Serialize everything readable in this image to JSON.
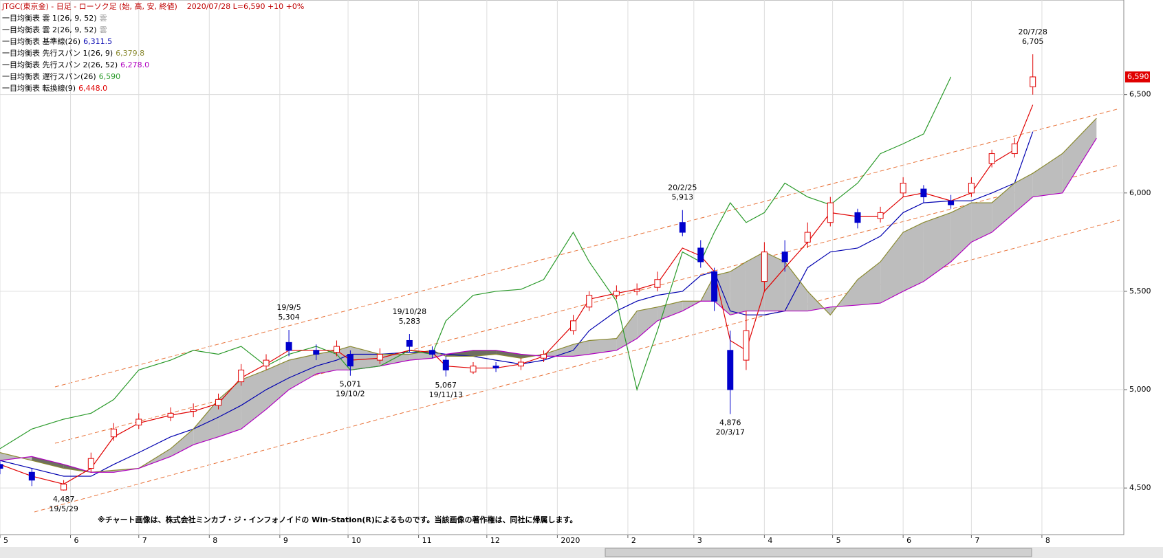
{
  "chart_data": {
    "type": "candlestick",
    "title": "JTGC(東京金) - 日足 - ローソク足 (始, 高, 安, 終値)",
    "status": "2020/07/28  L=6,590  +10  +0%",
    "clouds": [
      {
        "name": "一目均衡表 雲 1(26, 9, 52)",
        "marker": "雲"
      },
      {
        "name": "一目均衡表 雲 2(26, 9, 52)",
        "marker": "雲"
      }
    ],
    "x": [
      "19/5/1",
      "19/5/15",
      "19/5/29",
      "19/6/10",
      "19/6/20",
      "19/7/1",
      "19/7/15",
      "19/7/25",
      "19/8/5",
      "19/8/15",
      "19/8/26",
      "19/9/5",
      "19/9/17",
      "19/9/26",
      "19/10/2",
      "19/10/15",
      "19/10/28",
      "19/11/7",
      "19/11/13",
      "19/11/25",
      "19/12/5",
      "19/12/16",
      "19/12/26",
      "20/1/8",
      "20/1/15",
      "20/1/27",
      "20/2/5",
      "20/2/14",
      "20/2/25",
      "20/3/4",
      "20/3/10",
      "20/3/17",
      "20/3/24",
      "20/4/1",
      "20/4/10",
      "20/4/20",
      "20/4/30",
      "20/5/12",
      "20/5/22",
      "20/6/1",
      "20/6/10",
      "20/6/22",
      "20/7/1",
      "20/7/10",
      "20/7/20",
      "20/7/28",
      "20/8/10",
      "20/8/25"
    ],
    "open": [
      4620,
      4580,
      4490,
      4600,
      4760,
      4820,
      4860,
      4890,
      4920,
      5040,
      5120,
      5240,
      5200,
      5190,
      5180,
      5150,
      5250,
      5200,
      5150,
      5090,
      5120,
      5120,
      5160,
      5300,
      5420,
      5480,
      5500,
      5520,
      5850,
      5720,
      5600,
      5200,
      5150,
      5550,
      5700,
      5750,
      5850,
      5900,
      5870,
      6000,
      6020,
      5960,
      6000,
      6150,
      6200,
      6540,
      null,
      null
    ],
    "high": [
      4640,
      4600,
      4540,
      4680,
      4830,
      4880,
      4910,
      4930,
      4980,
      5130,
      5180,
      5304,
      5230,
      5250,
      5200,
      5210,
      5283,
      5220,
      5170,
      5140,
      5140,
      5160,
      5200,
      5380,
      5500,
      5530,
      5540,
      5600,
      5913,
      5760,
      5620,
      5300,
      5400,
      5750,
      5760,
      5850,
      5980,
      5920,
      5930,
      6080,
      6040,
      5990,
      6080,
      6220,
      6280,
      6705,
      null,
      null
    ],
    "low": [
      4570,
      4510,
      4487,
      4580,
      4740,
      4800,
      4840,
      4860,
      4900,
      5020,
      5100,
      5170,
      5150,
      5170,
      5071,
      5130,
      5190,
      5160,
      5067,
      5080,
      5090,
      5100,
      5140,
      5280,
      5400,
      5460,
      5480,
      5500,
      5780,
      5620,
      5400,
      4876,
      5100,
      5500,
      5600,
      5720,
      5830,
      5820,
      5850,
      5980,
      5950,
      5920,
      5980,
      6130,
      6180,
      6500,
      null,
      null
    ],
    "close": [
      4600,
      4540,
      4520,
      4650,
      4800,
      4850,
      4880,
      4900,
      4950,
      5100,
      5150,
      5200,
      5180,
      5220,
      5120,
      5180,
      5220,
      5180,
      5100,
      5120,
      5110,
      5140,
      5180,
      5350,
      5480,
      5500,
      5510,
      5560,
      5800,
      5650,
      5450,
      5000,
      5300,
      5700,
      5650,
      5800,
      5950,
      5850,
      5900,
      6050,
      5980,
      5940,
      6050,
      6200,
      6250,
      6590,
      null,
      null
    ],
    "last_label": "6,590",
    "up_color": "#e00000",
    "down_color": "#0000cc",
    "series": [
      {
        "name": "一目均衡表 基準線(26)",
        "last_label": "6,311.5",
        "color": "#0000b0",
        "values": [
          4640,
          4600,
          4560,
          4560,
          4620,
          4680,
          4760,
          4800,
          4860,
          4920,
          5000,
          5060,
          5120,
          5150,
          5180,
          5180,
          5190,
          5190,
          5180,
          5170,
          5150,
          5130,
          5150,
          5200,
          5300,
          5400,
          5450,
          5480,
          5500,
          5580,
          5600,
          5400,
          5380,
          5380,
          5400,
          5620,
          5700,
          5720,
          5780,
          5900,
          5950,
          5960,
          5960,
          6000,
          6050,
          6311.5,
          null,
          null
        ]
      },
      {
        "name": "一目均衡表 先行スパン 1(26, 9)",
        "last_label": "6,379.8",
        "color": "#8a8a30",
        "values": [
          4680,
          4640,
          4600,
          4580,
          4590,
          4600,
          4700,
          4800,
          4950,
          5050,
          5100,
          5150,
          5180,
          5200,
          5220,
          5180,
          5180,
          5200,
          5170,
          5170,
          5180,
          5160,
          5180,
          5230,
          5250,
          5260,
          5400,
          5420,
          5450,
          5450,
          5580,
          5600,
          5650,
          5700,
          5650,
          5500,
          5380,
          5560,
          5650,
          5800,
          5850,
          5900,
          5950,
          5950,
          6050,
          6100,
          6200,
          6379.8
        ]
      },
      {
        "name": "一目均衡表 先行スパン 2(26, 52)",
        "last_label": "6,278.0",
        "color": "#b000c0",
        "values": [
          4640,
          4660,
          4620,
          4580,
          4580,
          4600,
          4660,
          4720,
          4760,
          4800,
          4900,
          5000,
          5080,
          5100,
          5100,
          5120,
          5150,
          5160,
          5180,
          5200,
          5200,
          5180,
          5170,
          5170,
          5180,
          5200,
          5260,
          5350,
          5400,
          5450,
          5450,
          5380,
          5400,
          5400,
          5400,
          5400,
          5420,
          5430,
          5440,
          5500,
          5550,
          5650,
          5750,
          5800,
          5900,
          5980,
          6000,
          6278.0
        ]
      },
      {
        "name": "一目均衡表 遅行スパン(26)",
        "last_label": "6,590",
        "color": "#2a9a2a",
        "values": [
          4700,
          4800,
          4850,
          4880,
          4950,
          5100,
          5150,
          5200,
          5180,
          5220,
          5120,
          5180,
          5220,
          5180,
          5100,
          5120,
          5200,
          5180,
          5350,
          5480,
          5500,
          5510,
          5560,
          5800,
          5650,
          5450,
          5000,
          5300,
          5700,
          5650,
          5800,
          5950,
          5850,
          5900,
          6050,
          5980,
          5940,
          6050,
          6200,
          6250,
          6300,
          6590,
          null,
          null,
          null,
          null,
          null,
          null
        ]
      },
      {
        "name": "一目均衡表 転換線(9)",
        "last_label": "6,448.0",
        "color": "#e00000",
        "values": [
          4620,
          4560,
          4520,
          4600,
          4760,
          4830,
          4870,
          4890,
          4930,
          5060,
          5130,
          5200,
          5200,
          5200,
          5150,
          5160,
          5200,
          5190,
          5120,
          5110,
          5110,
          5130,
          5170,
          5330,
          5460,
          5490,
          5510,
          5540,
          5720,
          5680,
          5600,
          5250,
          5200,
          5500,
          5620,
          5750,
          5900,
          5880,
          5880,
          5980,
          6000,
          5960,
          6000,
          6150,
          6220,
          6448.0,
          null,
          null
        ]
      }
    ],
    "annotations": [
      {
        "x": "19/5/29",
        "value": 4487,
        "label": "4,487",
        "side": "low"
      },
      {
        "x": "19/9/5",
        "value": 5304,
        "label": "5,304",
        "side": "high"
      },
      {
        "x": "19/10/2",
        "value": 5071,
        "label": "5,071",
        "side": "low"
      },
      {
        "x": "19/10/28",
        "value": 5283,
        "label": "5,283",
        "side": "high"
      },
      {
        "x": "19/11/13",
        "value": 5067,
        "label": "5,067",
        "side": "low"
      },
      {
        "x": "20/2/25",
        "value": 5913,
        "label": "5,913",
        "side": "high"
      },
      {
        "x": "20/3/17",
        "value": 4876,
        "label": "4,876",
        "side": "low"
      },
      {
        "x": "20/7/28",
        "value": 6705,
        "label": "6,705",
        "side": "high"
      }
    ],
    "xlim": [
      "19/5/1",
      "20/9/6"
    ],
    "xticks": [
      {
        "value": "19/5/1",
        "label": "5"
      },
      {
        "value": "19/6/1",
        "label": "6"
      },
      {
        "value": "19/7/1",
        "label": "7"
      },
      {
        "value": "19/8/1",
        "label": "8"
      },
      {
        "value": "19/9/1",
        "label": "9"
      },
      {
        "value": "19/10/1",
        "label": "10"
      },
      {
        "value": "19/11/1",
        "label": "11"
      },
      {
        "value": "19/12/1",
        "label": "12"
      },
      {
        "value": "20/1/1",
        "label": "2020"
      },
      {
        "value": "20/2/1",
        "label": "2"
      },
      {
        "value": "20/3/1",
        "label": "3"
      },
      {
        "value": "20/4/1",
        "label": "4"
      },
      {
        "value": "20/5/1",
        "label": "5"
      },
      {
        "value": "20/6/1",
        "label": "6"
      },
      {
        "value": "20/7/1",
        "label": "7"
      },
      {
        "value": "20/8/1",
        "label": "8"
      }
    ],
    "ylim": [
      4263,
      6981
    ],
    "yticks": [
      {
        "value": 4500,
        "label": "4,500"
      },
      {
        "value": 5000,
        "label": "5,000"
      },
      {
        "value": 5500,
        "label": "5,500"
      },
      {
        "value": 6000,
        "label": "6,000"
      },
      {
        "value": 6500,
        "label": "6,500"
      }
    ],
    "grid": true,
    "note": "※チャート画像は、株式会社ミンカブ・ジ・インフォノイドの Win-Station(R)によるものです。当該画像の著作権は、同社に帰属します。"
  }
}
